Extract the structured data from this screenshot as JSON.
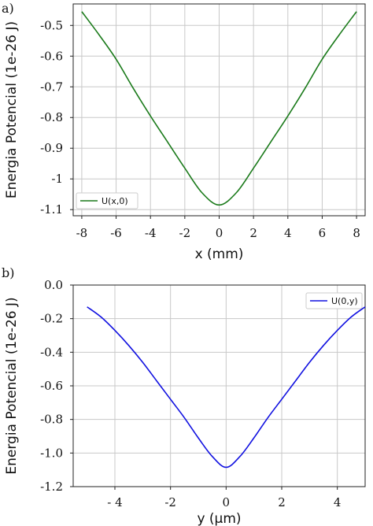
{
  "panels": {
    "a": {
      "label": "a)"
    },
    "b": {
      "label": "b)"
    }
  },
  "chart_data": [
    {
      "type": "line",
      "xlabel": "x (mm)",
      "ylabel": "Energia Potencial (1e-26 J)",
      "xlim": [
        -8.5,
        8.5
      ],
      "ylim": [
        -1.12,
        -0.43
      ],
      "xticks": [
        -8,
        -6,
        -4,
        -2,
        0,
        2,
        4,
        6,
        8
      ],
      "xtick_labels": [
        "-8",
        "-6",
        "-4",
        "-2",
        "0",
        "2",
        "4",
        "6",
        "8"
      ],
      "yticks": [
        -0.5,
        -0.6,
        -0.7,
        -0.8,
        -0.9,
        -1.0,
        -1.1
      ],
      "ytick_labels": [
        "-0.5",
        "-0.6",
        "-0.7",
        "-0.8",
        "-0.9",
        "-1",
        "-1.1"
      ],
      "grid": true,
      "legend": "bottom-left",
      "series": [
        {
          "name": "U(x,0)",
          "color": "#1a7a1a",
          "x": [
            -8,
            -7,
            -6,
            -5,
            -4,
            -3,
            -2,
            -1,
            0,
            1,
            2,
            3,
            4,
            5,
            6,
            7,
            8
          ],
          "y": [
            -0.455,
            -0.53,
            -0.61,
            -0.705,
            -0.795,
            -0.88,
            -0.965,
            -1.045,
            -1.085,
            -1.045,
            -0.965,
            -0.88,
            -0.795,
            -0.705,
            -0.61,
            -0.53,
            -0.455
          ]
        }
      ]
    },
    {
      "type": "line",
      "xlabel": "y (μm)",
      "ylabel": "Energia Potencial (1e-26 J)",
      "xlim": [
        -5.5,
        5.0
      ],
      "ylim": [
        -1.2,
        0.0
      ],
      "xticks": [
        -4,
        -2,
        0,
        2,
        4
      ],
      "xtick_labels": [
        "- 4",
        "-2",
        "0",
        "2",
        "4"
      ],
      "yticks": [
        0.0,
        -0.2,
        -0.4,
        -0.6,
        -0.8,
        -1.0,
        -1.2
      ],
      "ytick_labels": [
        "0.0",
        "-0.2",
        "-0.4",
        "-0.6",
        "-0.8",
        "-1.0",
        "-1.2"
      ],
      "grid": true,
      "legend": "top-right",
      "series": [
        {
          "name": "U(0,y)",
          "color": "#1010e0",
          "x": [
            -5,
            -4.5,
            -4,
            -3.5,
            -3,
            -2.5,
            -2,
            -1.5,
            -1,
            -0.5,
            0,
            0.5,
            1,
            1.5,
            2,
            2.5,
            3,
            3.5,
            4,
            4.5,
            5
          ],
          "y": [
            -0.13,
            -0.19,
            -0.27,
            -0.36,
            -0.46,
            -0.57,
            -0.68,
            -0.79,
            -0.91,
            -1.02,
            -1.085,
            -1.02,
            -0.91,
            -0.79,
            -0.68,
            -0.57,
            -0.46,
            -0.36,
            -0.27,
            -0.19,
            -0.13
          ]
        }
      ]
    }
  ]
}
